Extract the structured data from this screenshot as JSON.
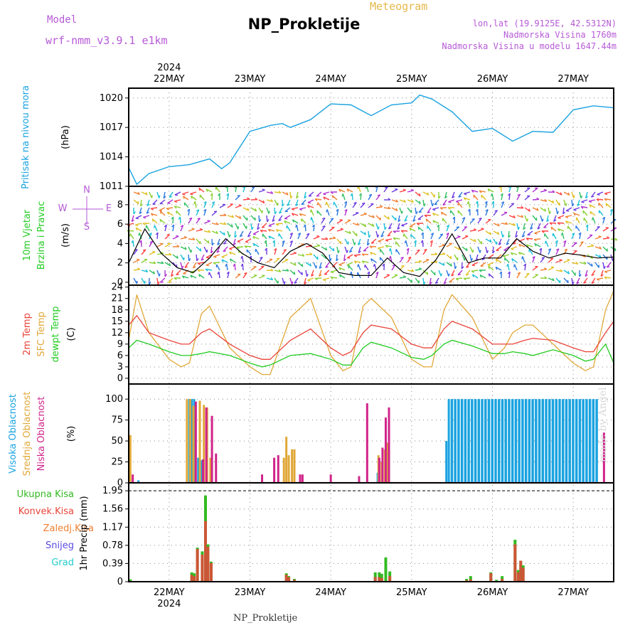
{
  "header": {
    "title": "NP_Prokletije",
    "meteogram": "Meteogram",
    "model_label": "Model",
    "model_name": "wrf-nmm_v3.9.1 e1km",
    "lonlat": "lon,lat (19.9125E, 42.5312N)",
    "elevation": "Nadmorska Visina 1760m",
    "model_elevation": "Nadmorska Visina u modelu 1647.44m"
  },
  "footer": {
    "name": "NP_Prokletije",
    "watermark": "made by Angel"
  },
  "colors": {
    "pressure": "#1aa3e0",
    "wind_label": "#22cc22",
    "wind_units": "#b65ad6",
    "temp2m": "#e8443a",
    "sfc": "#e0a838",
    "dewpt": "#22cc22",
    "high_cloud": "#1aa3e0",
    "mid_cloud": "#e0a838",
    "low_cloud": "#d0248a",
    "total_precip": "#33bb22",
    "conv_precip": "#e8443a",
    "frozen": "#f08030",
    "snow": "#5a4ae0",
    "graupel": "#22cccc"
  },
  "x_axis": {
    "year": "2024",
    "days": [
      "22MAY",
      "23MAY",
      "24MAY",
      "25MAY",
      "26MAY",
      "27MAY"
    ],
    "range_days": [
      21.5,
      27.5
    ]
  },
  "labels": {
    "pressure": [
      "Pritisak na nivou mora",
      "(hPa)"
    ],
    "wind": [
      "10m Vjetar",
      "Brzina i Pravac",
      "(m/s)"
    ],
    "wind_compass": {
      "n": "N",
      "s": "S",
      "e": "E",
      "w": "W"
    },
    "temp": [
      "2m Temp",
      "SFC Temp",
      "dewpt Temp",
      "(C)"
    ],
    "cloud": [
      "Visoka Oblacnost",
      "Srednja Oblacnost",
      "Niska Oblacnost",
      "(%)"
    ],
    "precip_legend": [
      "Ukupna Kisa",
      "Konvek.Kisa",
      "Zaledj.Kisa",
      "Snijeg",
      "Grad"
    ],
    "precip_axis": "1hr Precip (mm)"
  },
  "chart_data": [
    {
      "type": "line",
      "title": "Pritisak na nivou mora",
      "ylabel": "(hPa)",
      "yticks": [
        1011,
        1014,
        1017,
        1020
      ],
      "ylim": [
        1011,
        1021
      ],
      "x": [
        21.5,
        21.6,
        21.75,
        22.0,
        22.25,
        22.5,
        22.65,
        22.75,
        23.0,
        23.25,
        23.4,
        23.5,
        23.75,
        24.0,
        24.25,
        24.5,
        24.75,
        25.0,
        25.1,
        25.25,
        25.5,
        25.75,
        26.0,
        26.25,
        26.5,
        26.75,
        27.0,
        27.25,
        27.5
      ],
      "series": [
        {
          "values": [
            1012.9,
            1011.2,
            1012.3,
            1013.0,
            1013.2,
            1013.8,
            1012.8,
            1013.4,
            1016.6,
            1017.2,
            1017.4,
            1017.0,
            1017.8,
            1019.4,
            1019.3,
            1018.2,
            1019.3,
            1019.5,
            1020.3,
            1019.9,
            1018.6,
            1016.6,
            1016.9,
            1015.6,
            1016.6,
            1016.5,
            1018.8,
            1019.2,
            1019.0
          ]
        }
      ]
    },
    {
      "type": "line",
      "title": "10m Vjetar Brzina i Pravac",
      "ylabel": "(m/s)",
      "yticks": [
        0,
        2,
        4,
        6,
        8
      ],
      "ylim": [
        0,
        10
      ],
      "x": [
        21.5,
        21.7,
        21.9,
        22.1,
        22.3,
        22.5,
        22.7,
        22.9,
        23.1,
        23.3,
        23.5,
        23.7,
        23.9,
        24.1,
        24.3,
        24.5,
        24.7,
        24.9,
        25.1,
        25.3,
        25.5,
        25.7,
        25.9,
        26.1,
        26.3,
        26.5,
        26.7,
        26.9,
        27.1,
        27.3,
        27.5
      ],
      "series": [
        {
          "values": [
            2.0,
            5.5,
            3.0,
            1.5,
            1.0,
            2.5,
            4.5,
            3.0,
            2.0,
            1.5,
            3.2,
            4.0,
            3.0,
            1.0,
            0.7,
            0.7,
            2.5,
            1.0,
            0.6,
            2.3,
            5.0,
            2.0,
            2.5,
            2.5,
            4.5,
            3.2,
            2.5,
            3.0,
            2.8,
            2.5,
            2.6
          ]
        }
      ]
    },
    {
      "type": "line",
      "title": "2m Temp / SFC Temp / dewpt Temp",
      "ylabel": "(C)",
      "yticks": [
        0,
        3,
        6,
        9,
        12,
        15,
        18,
        21,
        24
      ],
      "ylim": [
        -1,
        24
      ],
      "x": [
        21.5,
        21.6,
        21.75,
        22.0,
        22.15,
        22.25,
        22.4,
        22.5,
        22.75,
        23.0,
        23.15,
        23.25,
        23.5,
        23.75,
        24.0,
        24.15,
        24.25,
        24.4,
        24.5,
        24.75,
        25.0,
        25.15,
        25.25,
        25.4,
        25.5,
        25.75,
        26.0,
        26.15,
        26.25,
        26.4,
        26.5,
        26.75,
        27.0,
        27.15,
        27.25,
        27.4,
        27.5
      ],
      "series": [
        {
          "name": "2m Temp",
          "values": [
            14.0,
            16.5,
            12.0,
            10.0,
            9.0,
            9.0,
            12.0,
            13.0,
            9.0,
            6.0,
            5.0,
            5.0,
            10.0,
            13.0,
            8.0,
            6.0,
            7.0,
            12.0,
            14.0,
            13.0,
            9.0,
            8.0,
            8.0,
            13.0,
            15.0,
            13.0,
            9.0,
            9.0,
            9.0,
            10.0,
            10.5,
            10.0,
            8.0,
            7.0,
            7.0,
            12.0,
            15.0
          ]
        },
        {
          "name": "SFC Temp",
          "values": [
            10.0,
            22.0,
            12.0,
            5.0,
            3.0,
            4.0,
            17.0,
            19.0,
            8.0,
            3.0,
            1.0,
            1.0,
            16.0,
            21.0,
            6.0,
            2.0,
            3.0,
            19.0,
            21.0,
            16.0,
            5.0,
            3.0,
            3.0,
            18.0,
            22.0,
            16.0,
            5.0,
            8.0,
            12.0,
            14.0,
            14.0,
            9.0,
            4.0,
            2.0,
            3.0,
            18.0,
            23.0
          ]
        },
        {
          "name": "dewpt Temp",
          "values": [
            8.0,
            10.0,
            9.0,
            7.0,
            6.0,
            6.0,
            6.5,
            7.0,
            6.0,
            4.0,
            3.0,
            3.5,
            6.0,
            6.5,
            5.0,
            3.5,
            3.5,
            8.0,
            9.5,
            8.0,
            5.5,
            5.0,
            6.0,
            9.0,
            10.0,
            8.5,
            6.5,
            6.5,
            7.0,
            6.5,
            6.0,
            7.5,
            6.0,
            4.5,
            5.0,
            9.0,
            4.0
          ]
        }
      ]
    },
    {
      "type": "bar",
      "title": "Oblacnost",
      "ylabel": "(%)",
      "yticks": [
        0,
        25,
        50,
        75,
        100
      ],
      "ylim": [
        0,
        100
      ],
      "series": [
        {
          "name": "Visoka Oblacnost",
          "x": [
            21.62,
            22.25,
            22.28,
            22.31,
            22.36,
            22.4,
            24.58,
            25.43,
            25.46
          ],
          "values": [
            3,
            100,
            100,
            100,
            30,
            27,
            12,
            50,
            100
          ]
        },
        {
          "name": "Srednja Oblacnost",
          "x": [
            21.52,
            22.22,
            22.26,
            22.3,
            22.38,
            22.43,
            22.47,
            22.51,
            23.42,
            23.45,
            23.48,
            23.52,
            23.55,
            24.59,
            24.63,
            24.67,
            24.7
          ],
          "values": [
            57,
            100,
            100,
            92,
            98,
            93,
            90,
            30,
            30,
            55,
            33,
            40,
            40,
            33,
            25,
            40,
            48
          ]
        },
        {
          "name": "Niska Oblacnost",
          "x": [
            21.55,
            22.33,
            22.42,
            22.46,
            22.53,
            22.58,
            23.15,
            23.3,
            23.35,
            23.62,
            23.65,
            24.0,
            24.35,
            24.45,
            24.6,
            24.64,
            24.68,
            24.72,
            27.38
          ],
          "values": [
            10,
            97,
            28,
            90,
            80,
            35,
            10,
            30,
            33,
            10,
            10,
            10,
            8,
            95,
            30,
            42,
            78,
            90,
            60
          ]
        }
      ],
      "high_cloud_overcast_range": [
        25.5,
        27.3
      ]
    },
    {
      "type": "bar",
      "title": "1hr Precip",
      "ylabel": "1hr Precip (mm)",
      "yticks": [
        0,
        0.39,
        0.78,
        1.17,
        1.56,
        1.95
      ],
      "ylim": [
        0,
        1.95
      ],
      "x": [
        21.52,
        22.28,
        22.31,
        22.35,
        22.41,
        22.45,
        22.48,
        22.52,
        23.45,
        23.48,
        23.55,
        24.55,
        24.6,
        24.63,
        24.68,
        24.73,
        25.68,
        25.73,
        25.98,
        26.05,
        26.12,
        26.28,
        26.32,
        26.35,
        26.38
      ],
      "series": [
        {
          "name": "Ukupna Kisa",
          "values": [
            0.05,
            0.2,
            0.18,
            0.73,
            0.65,
            1.85,
            0.8,
            0.43,
            0.18,
            0.12,
            0.06,
            0.2,
            0.2,
            0.17,
            0.52,
            0.22,
            0.06,
            0.12,
            0.2,
            0.04,
            0.12,
            0.9,
            0.25,
            0.45,
            0.35
          ]
        },
        {
          "name": "Konvek.Kisa",
          "values": [
            0.0,
            0.15,
            0.12,
            0.7,
            0.58,
            1.3,
            0.75,
            0.4,
            0.15,
            0.1,
            0.04,
            0.1,
            0.1,
            0.08,
            0.0,
            0.12,
            0.03,
            0.05,
            0.18,
            0.0,
            0.06,
            0.8,
            0.2,
            0.45,
            0.3
          ]
        }
      ]
    }
  ]
}
